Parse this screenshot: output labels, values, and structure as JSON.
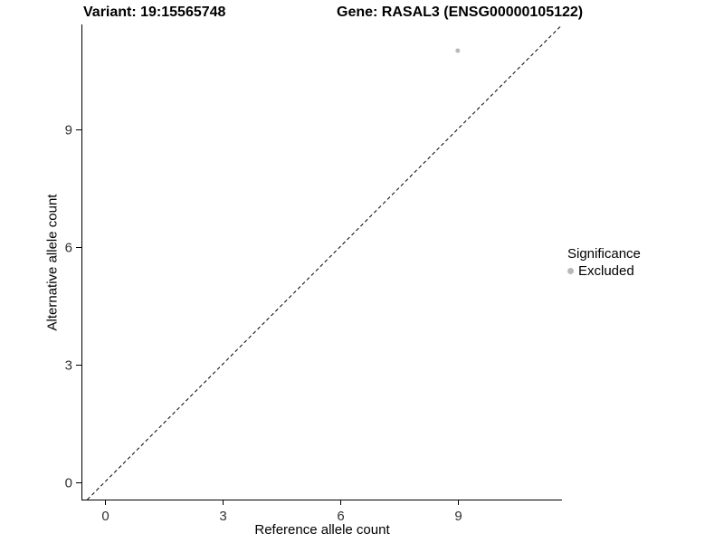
{
  "chart_data": {
    "type": "scatter",
    "title_variant": "Variant: 19:15565748",
    "title_gene": "Gene: RASAL3 (ENSG00000105122)",
    "xlabel": "Reference allele count",
    "ylabel": "Alternative allele count",
    "xlim": [
      -0.6,
      11.66
    ],
    "ylim": [
      -0.45,
      11.67
    ],
    "xticks": [
      0,
      3,
      6,
      9
    ],
    "yticks": [
      0,
      3,
      6,
      9
    ],
    "grid": false,
    "points": [
      {
        "x": 9,
        "y": 11,
        "series": "Excluded"
      }
    ],
    "series": [
      {
        "name": "Excluded",
        "color": "#b8b8b8"
      }
    ],
    "identity_line": {
      "style": "dashed",
      "color": "#000000",
      "slope": 1,
      "intercept": 0
    },
    "legend": {
      "title": "Significance",
      "position": "right",
      "entries": [
        {
          "label": "Excluded",
          "color": "#b8b8b8"
        }
      ]
    },
    "colors": {
      "axis": "#000000",
      "tick_text": "#303030",
      "background": "#ffffff"
    }
  }
}
